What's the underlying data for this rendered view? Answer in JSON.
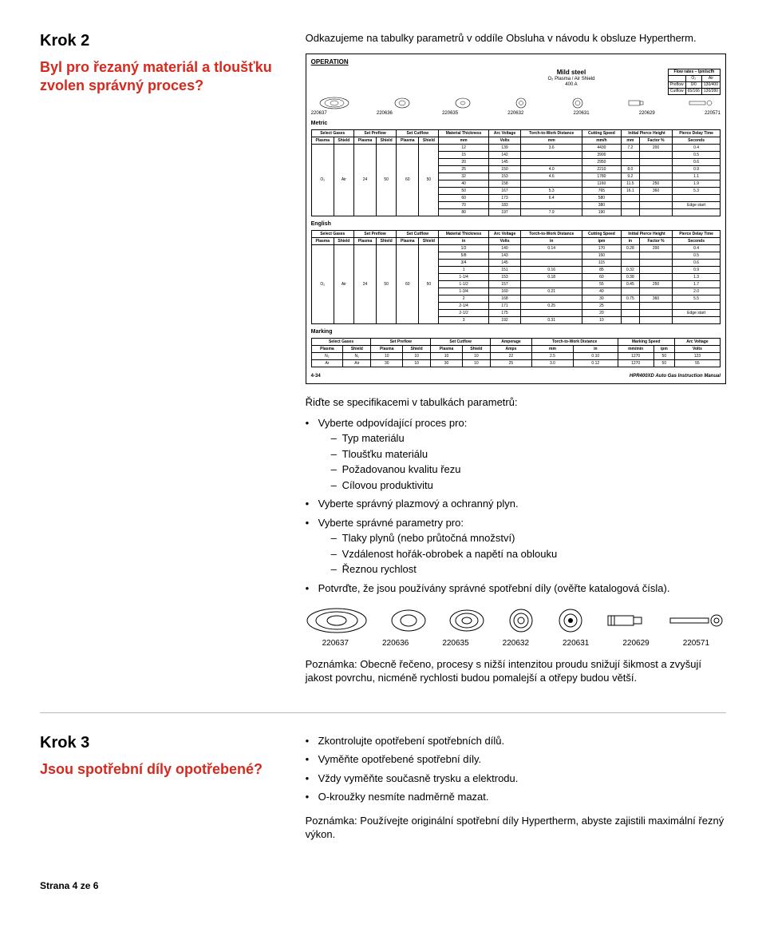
{
  "k2": {
    "title": "Krok 2",
    "question": "Byl pro řezaný materiál a tloušťku zvolen správný proces?",
    "lead": "Odkazujeme na tabulky parametrů v oddíle Obsluha v návodu k obsluze Hypertherm.",
    "specs_intro": "Řiďte se specifikacemi v tabulkách parametrů:",
    "b1": "Vyberte odpovídající proces pro:",
    "b1_items": {
      "a": "Typ materiálu",
      "b": "Tloušťku materiálu",
      "c": "Požadovanou kvalitu řezu",
      "d": "Cílovou produktivitu"
    },
    "b2": "Vyberte správný plazmový a ochranný plyn.",
    "b3": "Vyberte správné parametry pro:",
    "b3_items": {
      "a": "Tlaky plynů (nebo průtočná množství)",
      "b": "Vzdálenost hořák-obrobek a napětí na oblouku",
      "c": "Řeznou rychlost"
    },
    "b4": "Potvrďte, že jsou používány správné spotřební díly (ověřte katalogová čísla).",
    "note": "Poznámka: Obecně řečeno, procesy s nižší intenzitou proudu snižují šikmost a zvyšují jakost povrchu, nicméně rychlosti budou pomalejší a otřepy budou větší."
  },
  "part_numbers": [
    "220637",
    "220636",
    "220635",
    "220632",
    "220631",
    "220629",
    "220571"
  ],
  "chart": {
    "operation": "OPERATION",
    "material_title": "Mild steel",
    "material_sub1": "O₂ Plasma / Air Shield",
    "material_sub2": "400 A",
    "flow_header": "Flow rates – lpm/scfh",
    "flow_rows": {
      "cols": [
        "",
        "O₂",
        "Air"
      ],
      "preflow": [
        "Preflow",
        "0/0",
        "130/400"
      ],
      "cutflow": [
        "Cutflow",
        "65/166",
        "130/280"
      ]
    },
    "metric_label": "Metric",
    "english_label": "English",
    "marking_label": "Marking",
    "headers": {
      "selgas": "Select Gases",
      "setpre": "Set Preflow",
      "setcut": "Set Cutflow",
      "matthk": "Material Thickness",
      "arcv": "Arc Voltage",
      "ttw": "Torch-to-Work Distance",
      "cspeed": "Cutting Speed",
      "iph": "Initial Pierce Height",
      "pdelay": "Pierce Delay Time",
      "amps": "Amperage",
      "mspeed": "Marking Speed"
    },
    "subheads": {
      "plasma": "Plasma",
      "shield": "Shield",
      "mm": "mm",
      "volts": "Volts",
      "mmh": "mm/h",
      "factor": "Factor %",
      "sec": "Seconds",
      "in": "in",
      "ipm": "ipm",
      "amps": "Amps",
      "mmin": "mm/min"
    },
    "metric_rows": [
      {
        "pl": "O₂",
        "sh": "Air",
        "pre_pl": "24",
        "pre_sh": "50",
        "cut_pl": "60",
        "cut_sh": "50",
        "thk": "12",
        "av": "139",
        "ttw": "3.6",
        "spd": "4430",
        "iph": "7.2",
        "pct": "200",
        "pd": "0.4"
      },
      {
        "thk": "15",
        "av": "142",
        "ttw": "",
        "spd": "3900",
        "iph": "",
        "pct": "",
        "pd": "0.5"
      },
      {
        "thk": "20",
        "av": "145",
        "ttw": "",
        "spd": "2950",
        "iph": "",
        "pct": "",
        "pd": "0.6"
      },
      {
        "thk": "25",
        "av": "150",
        "ttw": "4.0",
        "spd": "2210",
        "iph": "8.0",
        "pct": "",
        "pd": "0.9"
      },
      {
        "thk": "32",
        "av": "153",
        "ttw": "4.6",
        "spd": "1780",
        "iph": "9.2",
        "pct": "",
        "pd": "1.1"
      },
      {
        "thk": "40",
        "av": "158",
        "ttw": "",
        "spd": "1160",
        "iph": "11.5",
        "pct": "250",
        "pd": "1.9"
      },
      {
        "thk": "50",
        "av": "167",
        "ttw": "5.3",
        "spd": "765",
        "iph": "16.1",
        "pct": "360",
        "pd": "5.3"
      },
      {
        "thk": "60",
        "av": "173",
        "ttw": "6.4",
        "spd": "580",
        "iph": "",
        "pct": "",
        "pd": ""
      },
      {
        "thk": "70",
        "av": "183",
        "ttw": "",
        "spd": "380",
        "iph": "",
        "pct": "",
        "pd": "Edge start"
      },
      {
        "thk": "80",
        "av": "197",
        "ttw": "7.9",
        "spd": "190",
        "iph": "",
        "pct": "",
        "pd": ""
      }
    ],
    "english_rows": [
      {
        "pl": "O₂",
        "sh": "Air",
        "pre_pl": "24",
        "pre_sh": "50",
        "cut_pl": "60",
        "cut_sh": "50",
        "thk": "1/2",
        "av": "140",
        "ttw": "0.14",
        "spd": "170",
        "iph": "0.28",
        "pct": "200",
        "pd": "0.4"
      },
      {
        "thk": "5/8",
        "av": "143",
        "ttw": "",
        "spd": "150",
        "iph": "",
        "pct": "",
        "pd": "0.5"
      },
      {
        "thk": "3/4",
        "av": "145",
        "ttw": "",
        "spd": "115",
        "iph": "",
        "pct": "",
        "pd": "0.6"
      },
      {
        "thk": "1",
        "av": "151",
        "ttw": "0.16",
        "spd": "85",
        "iph": "0.32",
        "pct": "",
        "pd": "0.9"
      },
      {
        "thk": "1-1/4",
        "av": "153",
        "ttw": "0.18",
        "spd": "60",
        "iph": "0.38",
        "pct": "",
        "pd": "1.3"
      },
      {
        "thk": "1-1/2",
        "av": "157",
        "ttw": "",
        "spd": "55",
        "iph": "0.45",
        "pct": "250",
        "pd": "1.7"
      },
      {
        "thk": "1-3/4",
        "av": "160",
        "ttw": "0.21",
        "spd": "40",
        "iph": "",
        "pct": "",
        "pd": "2.0"
      },
      {
        "thk": "2",
        "av": "168",
        "ttw": "",
        "spd": "30",
        "iph": "0.75",
        "pct": "360",
        "pd": "5.5"
      },
      {
        "thk": "2-1/4",
        "av": "171",
        "ttw": "0.25",
        "spd": "25",
        "iph": "",
        "pct": "",
        "pd": ""
      },
      {
        "thk": "2-1/2",
        "av": "175",
        "ttw": "",
        "spd": "20",
        "iph": "",
        "pct": "",
        "pd": "Edge start"
      },
      {
        "thk": "3",
        "av": "192",
        "ttw": "0.31",
        "spd": "10",
        "iph": "",
        "pct": "",
        "pd": ""
      }
    ],
    "marking_rows": [
      {
        "pl": "N₂",
        "sh": "N₂",
        "pre_pl": "10",
        "pre_sh": "10",
        "cut_pl": "10",
        "cut_sh": "10",
        "amps": "22",
        "ttw_mm": "2.5",
        "ttw_in": "0.10",
        "spd_mm": "1270",
        "spd_ipm": "50",
        "av": "123"
      },
      {
        "pl": "Ar",
        "sh": "Air",
        "pre_pl": "30",
        "pre_sh": "10",
        "cut_pl": "30",
        "cut_sh": "10",
        "amps": "25",
        "ttw_mm": "3.0",
        "ttw_in": "0.12",
        "spd_mm": "1270",
        "spd_ipm": "50",
        "av": "55"
      }
    ],
    "page_num": "4-34",
    "manual_name": "HPR400XD Auto Gas Instruction Manual"
  },
  "k3": {
    "title": "Krok 3",
    "question": "Jsou spotřební díly opotřebené?",
    "b1": "Zkontrolujte opotřebení spotřebních dílů.",
    "b2": "Vyměňte opotřebené spotřební díly.",
    "b3": "Vždy vyměňte současně trysku a elektrodu.",
    "b4": "O-kroužky nesmíte nadměrně mazat.",
    "note": "Poznámka: Používejte originální spotřební díly Hypertherm, abyste zajistili maximální řezný výkon."
  },
  "footer": "Strana 4 ze 6"
}
